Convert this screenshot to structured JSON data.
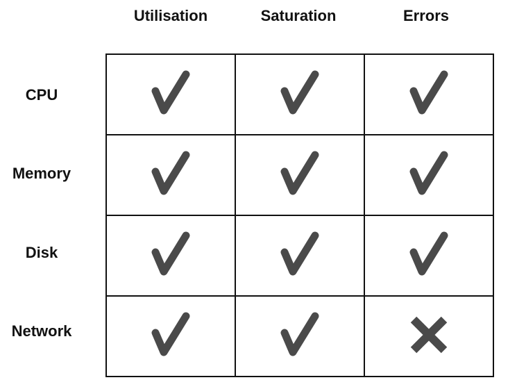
{
  "columns": [
    "Utilisation",
    "Saturation",
    "Errors"
  ],
  "rows": [
    {
      "label": "CPU",
      "cells": [
        "check",
        "check",
        "check"
      ]
    },
    {
      "label": "Memory",
      "cells": [
        "check",
        "check",
        "check"
      ]
    },
    {
      "label": "Disk",
      "cells": [
        "check",
        "check",
        "check"
      ]
    },
    {
      "label": "Network",
      "cells": [
        "check",
        "check",
        "cross"
      ]
    }
  ],
  "colors": {
    "mark": "#4a4a4a",
    "grid": "#111111"
  }
}
